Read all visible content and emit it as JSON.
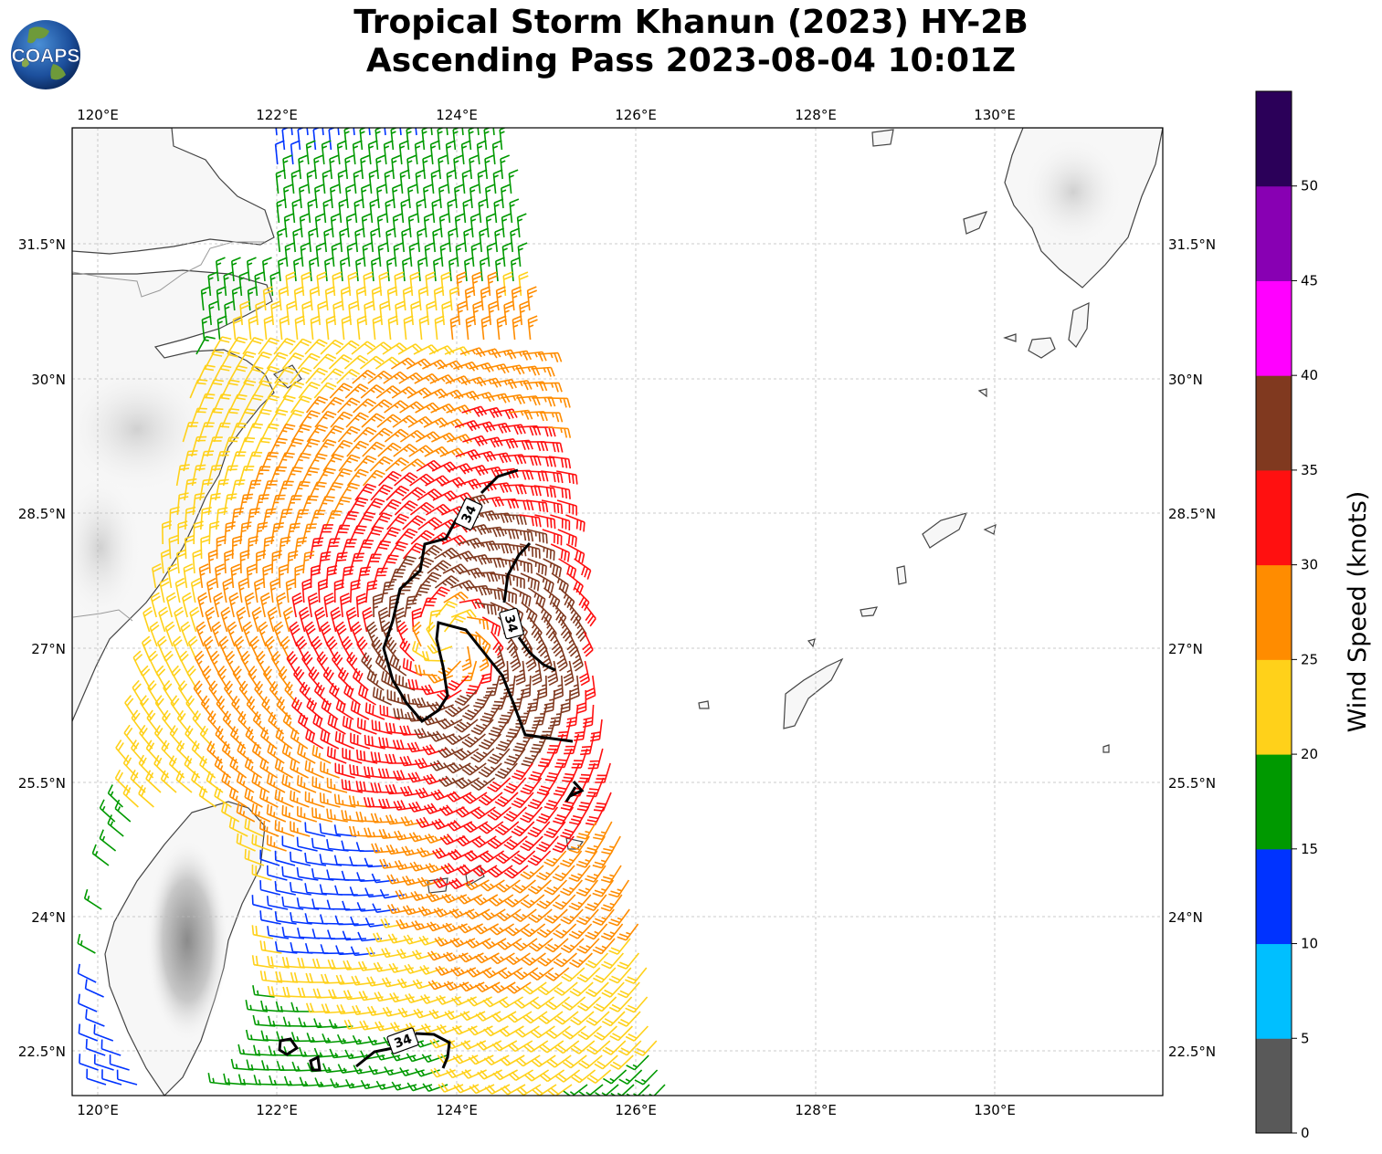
{
  "title": {
    "line1": "Tropical Storm Khanun (2023) HY-2B",
    "line2": "Ascending Pass 2023-08-04 10:01Z"
  },
  "logo": {
    "text": "COAPS"
  },
  "map": {
    "lon_range": [
      119.7,
      131.85
    ],
    "lat_range": [
      22.0,
      32.8
    ],
    "lon_ticks": [
      "120°E",
      "122°E",
      "124°E",
      "126°E",
      "128°E",
      "130°E"
    ],
    "lat_ticks": [
      "22.5°N",
      "24°N",
      "25.5°N",
      "27°N",
      "28.5°N",
      "30°N",
      "31.5°N"
    ]
  },
  "contours": {
    "label": "34"
  },
  "colorbar": {
    "label": "Wind Speed (knots)",
    "ticks": [
      "0",
      "5",
      "10",
      "15",
      "20",
      "25",
      "30",
      "35",
      "40",
      "45",
      "50"
    ],
    "bins": [
      {
        "range": "0-5",
        "color": "#595959"
      },
      {
        "range": "5-10",
        "color": "#00bfff"
      },
      {
        "range": "10-15",
        "color": "#0033ff"
      },
      {
        "range": "15-20",
        "color": "#009900"
      },
      {
        "range": "20-25",
        "color": "#ffd11a"
      },
      {
        "range": "25-30",
        "color": "#ff8c00"
      },
      {
        "range": "30-35",
        "color": "#ff1010"
      },
      {
        "range": "35-40",
        "color": "#80391f"
      },
      {
        "range": "40-45",
        "color": "#ff00ff"
      },
      {
        "range": "45-50",
        "color": "#8800b3"
      },
      {
        "range": "50+",
        "color": "#2b0059"
      }
    ]
  }
}
